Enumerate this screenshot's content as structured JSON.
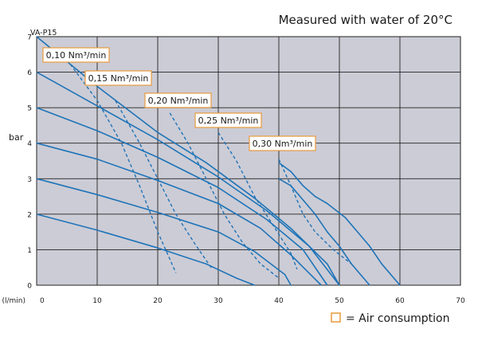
{
  "chart_data": {
    "type": "line",
    "title": "",
    "subtitle": "Measured with water of 20°C",
    "model_label": "VA-P15",
    "xlabel": "(l/min)",
    "ylabel": "bar",
    "xlim": [
      0,
      70
    ],
    "ylim": [
      0,
      7
    ],
    "x_ticks": [
      "0",
      "10",
      "20",
      "30",
      "40",
      "50",
      "60",
      "70"
    ],
    "y_ticks": [
      "0",
      "1",
      "2",
      "3",
      "4",
      "5",
      "6",
      "7"
    ],
    "grid": true,
    "legend": {
      "position": "bottom-right",
      "swatch_color": "#e89a3c",
      "text": "= Air consumption"
    },
    "colors": {
      "plot_bg": "#ccccd6",
      "curve": "#1e74b8",
      "grid": "#222222",
      "box_border": "#e89a3c"
    },
    "pressure_curves": [
      {
        "points": [
          [
            0,
            7
          ],
          [
            10,
            5.6
          ],
          [
            20,
            4.3
          ],
          [
            28,
            3.45
          ],
          [
            36,
            2.45
          ],
          [
            42,
            1.6
          ],
          [
            48,
            0.6
          ],
          [
            50,
            0
          ]
        ]
      },
      {
        "points": [
          [
            0,
            6
          ],
          [
            10,
            5.05
          ],
          [
            20,
            4.1
          ],
          [
            30,
            3.05
          ],
          [
            38,
            2.1
          ],
          [
            45,
            1.1
          ],
          [
            50,
            0
          ]
        ]
      },
      {
        "points": [
          [
            0,
            5
          ],
          [
            10,
            4.35
          ],
          [
            20,
            3.6
          ],
          [
            30,
            2.75
          ],
          [
            38,
            1.85
          ],
          [
            44,
            1.0
          ],
          [
            48,
            0
          ]
        ]
      },
      {
        "points": [
          [
            0,
            4
          ],
          [
            10,
            3.55
          ],
          [
            20,
            2.95
          ],
          [
            30,
            2.3
          ],
          [
            37,
            1.6
          ],
          [
            42,
            0.85
          ],
          [
            47,
            0
          ]
        ]
      },
      {
        "points": [
          [
            0,
            3
          ],
          [
            10,
            2.55
          ],
          [
            20,
            2.05
          ],
          [
            30,
            1.5
          ],
          [
            36,
            0.95
          ],
          [
            41,
            0.3
          ],
          [
            42,
            0
          ]
        ]
      },
      {
        "points": [
          [
            0,
            2
          ],
          [
            10,
            1.55
          ],
          [
            20,
            1.05
          ],
          [
            28,
            0.6
          ],
          [
            33,
            0.2
          ],
          [
            36,
            0
          ]
        ]
      },
      {
        "points": [
          [
            40,
            3.45
          ],
          [
            42,
            3.2
          ],
          [
            44,
            2.8
          ],
          [
            46,
            2.5
          ],
          [
            48,
            2.3
          ],
          [
            51,
            1.9
          ],
          [
            53,
            1.5
          ],
          [
            55,
            1.1
          ],
          [
            57,
            0.6
          ],
          [
            60,
            0
          ]
        ]
      },
      {
        "points": [
          [
            40,
            3.0
          ],
          [
            42,
            2.8
          ],
          [
            44,
            2.4
          ],
          [
            46,
            2.0
          ],
          [
            48,
            1.5
          ],
          [
            50,
            1.1
          ],
          [
            52,
            0.6
          ],
          [
            54,
            0.2
          ],
          [
            55,
            0
          ]
        ]
      }
    ],
    "air_consumption_curves": [
      {
        "label": "0,10 Nm³/min",
        "points": [
          [
            5,
            6.35
          ],
          [
            10,
            5.2
          ],
          [
            14,
            4.0
          ],
          [
            17,
            2.8
          ],
          [
            20,
            1.5
          ],
          [
            23,
            0.35
          ]
        ]
      },
      {
        "label": "0,15 Nm³/min",
        "points": [
          [
            13,
            5.2
          ],
          [
            17,
            4.0
          ],
          [
            20,
            3.0
          ],
          [
            23,
            2.0
          ],
          [
            26,
            1.2
          ],
          [
            29,
            0.45
          ]
        ]
      },
      {
        "label": "0,20 Nm³/min",
        "points": [
          [
            22,
            4.85
          ],
          [
            25,
            4.0
          ],
          [
            28,
            3.0
          ],
          [
            31,
            2.0
          ],
          [
            34,
            1.2
          ],
          [
            37,
            0.6
          ],
          [
            40,
            0.2
          ]
        ]
      },
      {
        "label": "0,25 Nm³/min",
        "points": [
          [
            30,
            4.3
          ],
          [
            33,
            3.5
          ],
          [
            36,
            2.5
          ],
          [
            39,
            1.7
          ],
          [
            42,
            0.9
          ],
          [
            43,
            0.45
          ]
        ]
      },
      {
        "label": "0,30 Nm³/min",
        "points": [
          [
            40,
            3.55
          ],
          [
            42,
            2.8
          ],
          [
            44,
            2.0
          ],
          [
            46,
            1.5
          ],
          [
            49,
            1.0
          ],
          [
            52,
            0.6
          ]
        ]
      }
    ]
  }
}
